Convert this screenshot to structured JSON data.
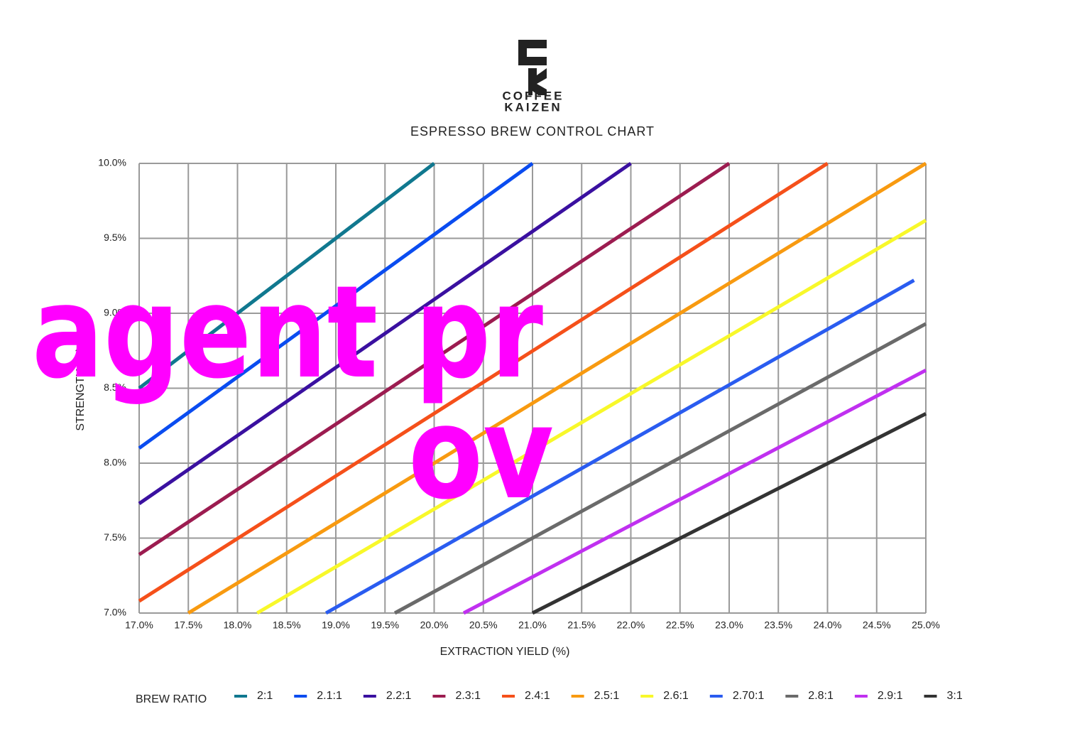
{
  "chart_data": {
    "type": "line",
    "brand": [
      "COFFEE",
      "KAIZEN"
    ],
    "title": "ESPRESSO BREW CONTROL CHART",
    "x_label": "EXTRACTION YIELD (%)",
    "y_label": "STRENGTH (%)",
    "legend_title": "BREW RATIO",
    "legend": "bottom",
    "grid": true,
    "xlim": [
      17.0,
      25.0
    ],
    "ylim": [
      7.0,
      10.0
    ],
    "xticks": [
      {
        "value": 17.0,
        "label": "17.0%"
      },
      {
        "value": 17.5,
        "label": "17.5%"
      },
      {
        "value": 18.0,
        "label": "18.0%"
      },
      {
        "value": 18.5,
        "label": "18.5%"
      },
      {
        "value": 19.0,
        "label": "19.0%"
      },
      {
        "value": 19.5,
        "label": "19.5%"
      },
      {
        "value": 20.0,
        "label": "20.0%"
      },
      {
        "value": 20.5,
        "label": "20.5%"
      },
      {
        "value": 21.0,
        "label": "21.0%"
      },
      {
        "value": 21.5,
        "label": "21.5%"
      },
      {
        "value": 22.0,
        "label": "22.0%"
      },
      {
        "value": 22.5,
        "label": "22.5%"
      },
      {
        "value": 23.0,
        "label": "23.0%"
      },
      {
        "value": 23.5,
        "label": "23.5%"
      },
      {
        "value": 24.0,
        "label": "24.0%"
      },
      {
        "value": 24.5,
        "label": "24.5%"
      },
      {
        "value": 25.0,
        "label": "25.0%"
      }
    ],
    "yticks": [
      {
        "value": 7.0,
        "label": "7.0%"
      },
      {
        "value": 7.5,
        "label": "7.5%"
      },
      {
        "value": 8.0,
        "label": "8.0%"
      },
      {
        "value": 8.5,
        "label": "8.5%"
      },
      {
        "value": 9.0,
        "label": "9.0%"
      },
      {
        "value": 9.5,
        "label": "9.5%"
      },
      {
        "value": 10.0,
        "label": "10.0%"
      }
    ],
    "series": [
      {
        "name": "2:1",
        "color": "#10788f",
        "x": [
          17.0,
          20.0
        ],
        "values": [
          8.5,
          10.0
        ]
      },
      {
        "name": "2.1:1",
        "color": "#0a4cf0",
        "x": [
          17.0,
          21.0
        ],
        "values": [
          8.1,
          10.0
        ]
      },
      {
        "name": "2.2:1",
        "color": "#3a10a0",
        "x": [
          17.0,
          22.0
        ],
        "values": [
          7.73,
          10.0
        ]
      },
      {
        "name": "2.3:1",
        "color": "#9c1c50",
        "x": [
          17.0,
          23.0
        ],
        "values": [
          7.39,
          10.0
        ]
      },
      {
        "name": "2.4:1",
        "color": "#f5501a",
        "x": [
          17.0,
          24.0
        ],
        "values": [
          7.08,
          10.0
        ]
      },
      {
        "name": "2.5:1",
        "color": "#f89a10",
        "x": [
          17.5,
          25.0
        ],
        "values": [
          7.0,
          10.0
        ]
      },
      {
        "name": "2.6:1",
        "color": "#f8f82a",
        "x": [
          18.2,
          25.0
        ],
        "values": [
          7.0,
          9.62
        ]
      },
      {
        "name": "2.70:1",
        "color": "#2a5cf0",
        "x": [
          18.9,
          24.88
        ],
        "values": [
          7.0,
          9.22
        ]
      },
      {
        "name": "2.8:1",
        "color": "#6a6a6a",
        "x": [
          19.6,
          25.0
        ],
        "values": [
          7.0,
          8.93
        ]
      },
      {
        "name": "2.9:1",
        "color": "#c030f0",
        "x": [
          20.3,
          25.0
        ],
        "values": [
          7.0,
          8.62
        ]
      },
      {
        "name": "3:1",
        "color": "#333333",
        "x": [
          21.0,
          25.0
        ],
        "values": [
          7.0,
          8.33
        ]
      }
    ],
    "annotations": [
      "agent pr",
      "ov"
    ]
  }
}
